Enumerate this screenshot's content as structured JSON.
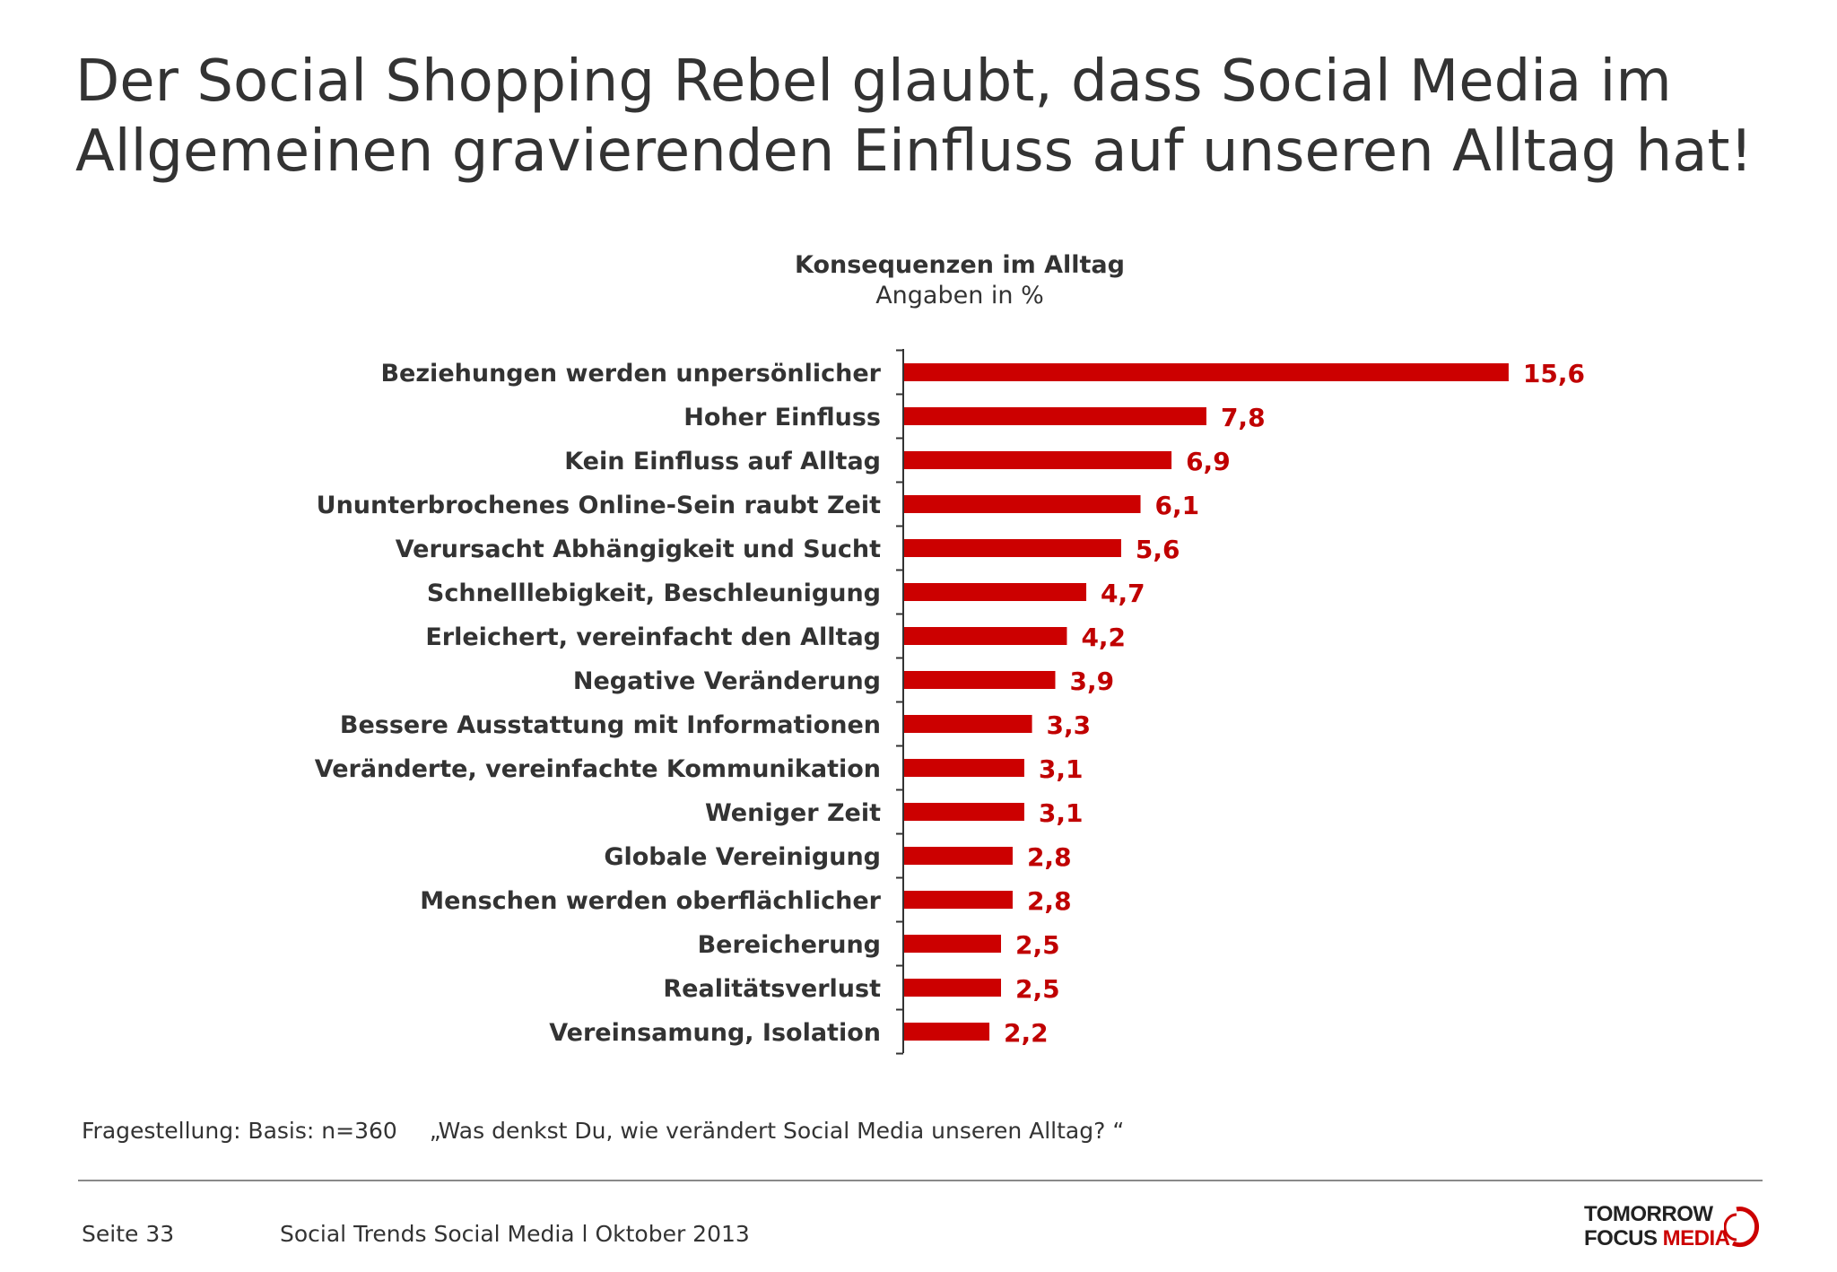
{
  "title": "Der Social Shopping Rebel glaubt, dass Social Media im Allgemeinen gravierenden Einfluss auf unseren Alltag hat!",
  "chart_data": {
    "type": "bar",
    "orientation": "horizontal",
    "title": "Konsequenzen im Alltag",
    "subtitle": "Angaben in %",
    "categories": [
      "Beziehungen werden unpersönlicher",
      "Hoher Einfluss",
      "Kein Einfluss auf Alltag",
      "Ununterbrochenes Online-Sein raubt Zeit",
      "Verursacht Abhängigkeit und Sucht",
      "Schnelllebigkeit, Beschleunigung",
      "Erleichert, vereinfacht den Alltag",
      "Negative Veränderung",
      "Bessere Ausstattung mit Informationen",
      "Veränderte, vereinfachte Kommunikation",
      "Weniger Zeit",
      "Globale Vereinigung",
      "Menschen werden oberflächlicher",
      "Bereicherung",
      "Realitätsverlust",
      "Vereinsamung, Isolation"
    ],
    "values": [
      15.6,
      7.8,
      6.9,
      6.1,
      5.6,
      4.7,
      4.2,
      3.9,
      3.3,
      3.1,
      3.1,
      2.8,
      2.8,
      2.5,
      2.5,
      2.2
    ],
    "value_labels": [
      "15,6",
      "7,8",
      "6,9",
      "6,1",
      "5,6",
      "4,7",
      "4,2",
      "3,9",
      "3,3",
      "3,1",
      "3,1",
      "2,8",
      "2,8",
      "2,5",
      "2,5",
      "2,2"
    ],
    "bar_color": "#cc0000",
    "value_label_color": "#c00000",
    "grid": false,
    "legend": "none"
  },
  "footnote": {
    "basis": "Fragestellung: Basis: n=360",
    "question": "„Was denkst Du, wie verändert Social Media unseren Alltag? “"
  },
  "footer": {
    "page": "Seite 33",
    "source": "Social Trends Social Media l Oktober 2013"
  },
  "logo": {
    "line1": "TOMORROW",
    "line2a": "FOCUS ",
    "line2b": "MEDIA"
  }
}
